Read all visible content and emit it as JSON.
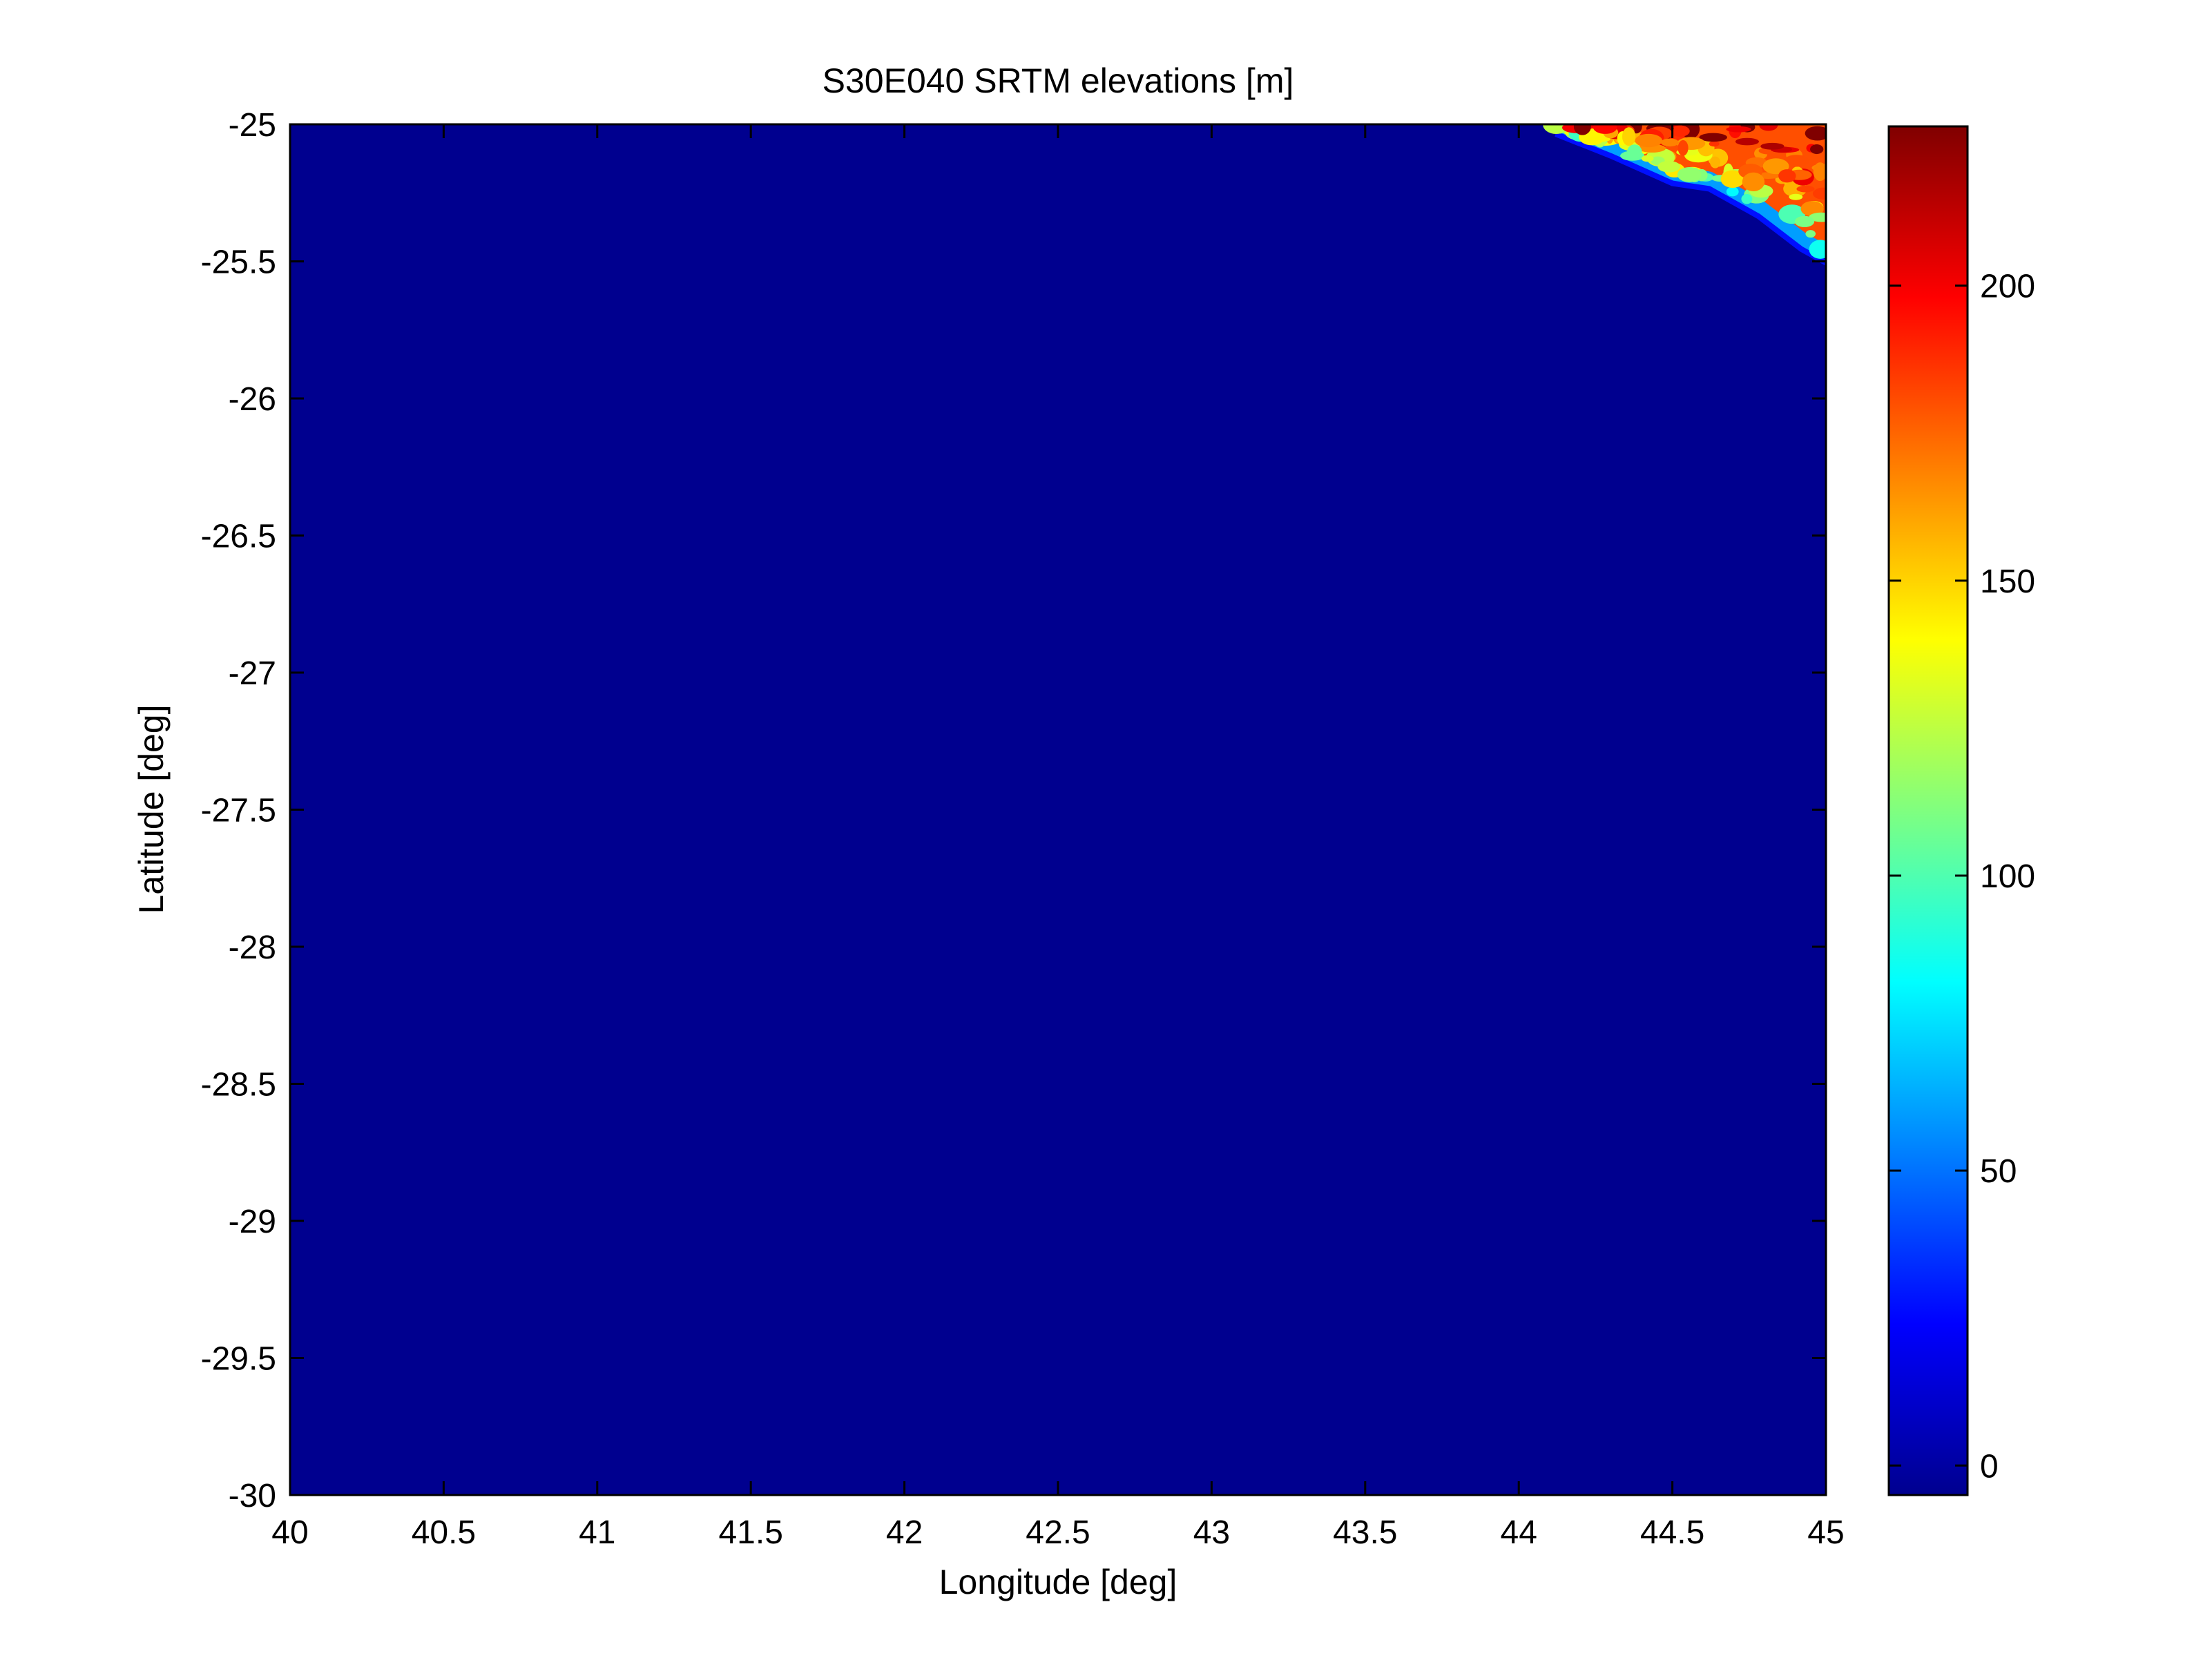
{
  "chart_data": {
    "type": "heatmap",
    "title": "S30E040 SRTM elevations [m]",
    "xlabel": "Longitude [deg]",
    "ylabel": "Latitude [deg]",
    "xlim": [
      40,
      45
    ],
    "ylim": [
      -30,
      -25
    ],
    "x_ticks": [
      "40",
      "40.5",
      "41",
      "41.5",
      "42",
      "42.5",
      "43",
      "43.5",
      "44",
      "44.5",
      "45"
    ],
    "y_ticks": [
      "-25",
      "-25.5",
      "-26",
      "-26.5",
      "-27",
      "-27.5",
      "-28",
      "-28.5",
      "-29",
      "-29.5",
      "-30"
    ],
    "colorbar": {
      "colormap": "jet",
      "range": [
        -5,
        227
      ],
      "ticks": [
        "0",
        "50",
        "100",
        "150",
        "200"
      ]
    },
    "background_value_m": 0,
    "land_region": {
      "description_location": "top-right",
      "coastline": [
        {
          "lon": 44.12,
          "lat": -25.0
        },
        {
          "lon": 44.3,
          "lat": -25.08
        },
        {
          "lon": 44.5,
          "lat": -25.18
        },
        {
          "lon": 44.62,
          "lat": -25.2
        },
        {
          "lon": 44.78,
          "lat": -25.3
        },
        {
          "lon": 44.92,
          "lat": -25.42
        },
        {
          "lon": 45.0,
          "lat": -25.47
        }
      ],
      "typical_elevation_m": 180,
      "coastal_elevation_m": 60
    },
    "grid": false
  }
}
